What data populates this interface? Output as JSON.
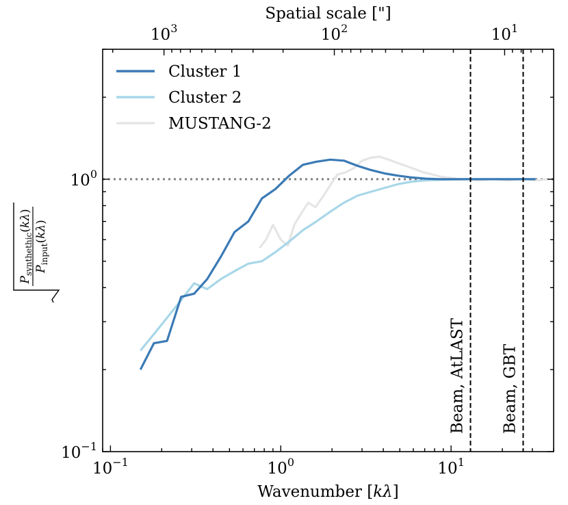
{
  "chart_data": {
    "type": "line",
    "xlabel": "Wavenumber [kλ]",
    "ylabel": "sqrt(P_synthethic(kλ) / P_input(kλ))",
    "top_xlabel": "Spatial scale [\"]",
    "xscale": "log",
    "yscale": "log",
    "xlim": [
      0.09,
      40
    ],
    "ylim": [
      0.1,
      3
    ],
    "x_ticks": [
      {
        "value": 0.1,
        "base": "10",
        "exp": "−1"
      },
      {
        "value": 1,
        "base": "10",
        "exp": "0"
      },
      {
        "value": 10,
        "base": "10",
        "exp": "1"
      }
    ],
    "y_ticks": [
      {
        "value": 0.1,
        "base": "10",
        "exp": "−1"
      },
      {
        "value": 1,
        "base": "10",
        "exp": "0"
      }
    ],
    "top_ticks": [
      {
        "value": 1000,
        "base": "10",
        "exp": "3"
      },
      {
        "value": 100,
        "base": "10",
        "exp": "2"
      },
      {
        "value": 10,
        "base": "10",
        "exp": "1"
      }
    ],
    "legend_position": "top-left",
    "reference_line": {
      "y": 1.0,
      "style": "dotted",
      "color": "#808080"
    },
    "vlines": [
      {
        "x": 13,
        "label": "Beam, AtLAST"
      },
      {
        "x": 26.5,
        "label": "Beam, GBT"
      }
    ],
    "series": [
      {
        "name": "Cluster 1",
        "color": "#3a7ab5",
        "x": [
          0.15,
          0.18,
          0.215,
          0.26,
          0.31,
          0.37,
          0.445,
          0.535,
          0.645,
          0.775,
          0.93,
          1.12,
          1.35,
          1.62,
          1.95,
          2.35,
          2.82,
          3.4,
          4.08,
          4.9,
          5.9,
          7.1,
          8.55,
          10.3,
          12.4,
          14.9,
          18,
          21.6,
          26,
          31.3
        ],
        "y": [
          0.2,
          0.25,
          0.255,
          0.37,
          0.38,
          0.43,
          0.52,
          0.64,
          0.7,
          0.85,
          0.92,
          1.03,
          1.13,
          1.16,
          1.18,
          1.17,
          1.12,
          1.08,
          1.05,
          1.03,
          1.015,
          1.005,
          1.0,
          1.0,
          1.0,
          1.0,
          1.0,
          1.0,
          1.0,
          1.0
        ]
      },
      {
        "name": "Cluster 2",
        "color": "#a8d7e8",
        "x": [
          0.15,
          0.18,
          0.215,
          0.26,
          0.31,
          0.37,
          0.445,
          0.535,
          0.645,
          0.775,
          0.93,
          1.12,
          1.35,
          1.62,
          1.95,
          2.35,
          2.82,
          3.4,
          4.08,
          4.9,
          5.9,
          7.1,
          8.55,
          10.3,
          12.4,
          14.9,
          18,
          21.6,
          26,
          31.3
        ],
        "y": [
          0.235,
          0.27,
          0.31,
          0.36,
          0.415,
          0.395,
          0.43,
          0.46,
          0.49,
          0.5,
          0.54,
          0.59,
          0.65,
          0.7,
          0.76,
          0.82,
          0.87,
          0.9,
          0.93,
          0.96,
          0.98,
          0.99,
          0.995,
          0.998,
          1.0,
          1.0,
          1.0,
          1.0,
          1.0,
          1.0
        ]
      },
      {
        "name": "MUSTANG-2",
        "color": "#e5e5e5",
        "x": [
          0.75,
          0.82,
          0.9,
          1.0,
          1.1,
          1.2,
          1.32,
          1.45,
          1.6,
          1.76,
          1.95,
          2.15,
          2.4,
          2.7,
          3.0,
          3.4,
          3.8,
          4.3,
          4.8,
          5.4,
          6.1,
          6.9,
          7.8,
          8.8,
          10.0,
          11.3,
          12.8,
          14.5,
          16.5,
          18.8,
          21.5,
          24.5,
          28,
          32,
          37
        ],
        "y": [
          0.56,
          0.6,
          0.68,
          0.6,
          0.57,
          0.68,
          0.75,
          0.82,
          0.79,
          0.86,
          0.95,
          1.04,
          1.06,
          1.1,
          1.17,
          1.2,
          1.21,
          1.18,
          1.15,
          1.12,
          1.09,
          1.06,
          1.04,
          1.02,
          1.01,
          1.0,
          1.0,
          0.99,
          1.0,
          1.0,
          0.99,
          1.0,
          1.0,
          0.99,
          1.0
        ]
      }
    ]
  }
}
